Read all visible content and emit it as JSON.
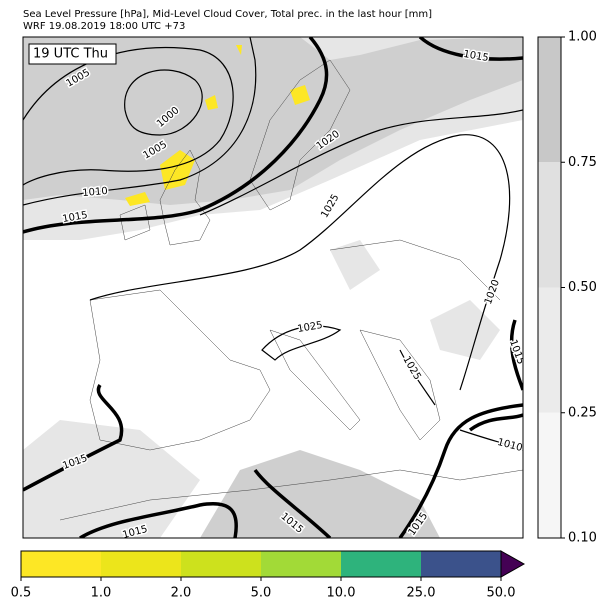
{
  "header": {
    "title": "Sea Level Pressure [hPa], Mid-Level Cloud Cover, Total prec. in the last hour [mm]",
    "subtitle": "WRF 19.08.2019 18:00 UTC +73"
  },
  "map": {
    "time_label": "19 UTC Thu",
    "isobar_labels": [
      "1005",
      "1000",
      "1005",
      "1010",
      "1015",
      "1015",
      "1020",
      "1025",
      "1020",
      "1015",
      "1025",
      "1025",
      "1010",
      "1015",
      "1015",
      "1015",
      "1015"
    ]
  },
  "cloud_colorbar": {
    "ticks": [
      "1.00",
      "0.75",
      "0.50",
      "0.25",
      "0.10"
    ],
    "colors": [
      "#c8c8c8",
      "#e0e0e0",
      "#ebebeb",
      "#f6f6f6"
    ]
  },
  "precip_colorbar": {
    "ticks": [
      "0.5",
      "1.0",
      "2.0",
      "5.0",
      "10.0",
      "25.0",
      "50.0"
    ],
    "colors": [
      "#fde725",
      "#ece51b",
      "#cde11d",
      "#a2da37",
      "#2eb37c",
      "#3b528b"
    ],
    "extend_color": "#440154"
  }
}
